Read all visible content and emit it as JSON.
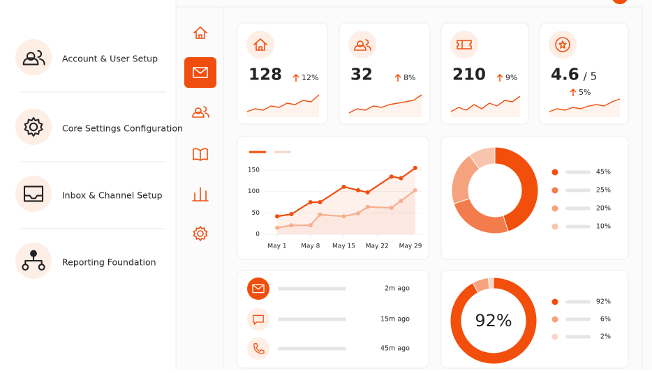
{
  "steps": [
    {
      "label": "Account & User Setup"
    },
    {
      "label": "Core Settings Configuration"
    },
    {
      "label": "Inbox & Channel Setup"
    },
    {
      "label": "Reporting Foundation"
    }
  ],
  "stats": [
    {
      "value": 128,
      "change": "12%",
      "trend": [
        2,
        3,
        2.5,
        4,
        3.5,
        5,
        4.5,
        6,
        5.5,
        8
      ]
    },
    {
      "value": 32,
      "change": "8%",
      "trend": [
        1.5,
        3,
        2.5,
        4,
        3.5,
        4.5,
        5,
        5.5,
        6,
        8
      ]
    },
    {
      "value": 210,
      "change": "9%",
      "trend": [
        2,
        3.5,
        2.5,
        4.5,
        3,
        5,
        4,
        6,
        5.5,
        7.5
      ]
    },
    {
      "value": 4.6,
      "scale": "/ 5",
      "change": "5%",
      "trend": [
        2,
        3,
        2.5,
        3.5,
        3,
        4,
        4.5,
        4,
        5.5,
        6.5
      ]
    }
  ],
  "line_chart": {
    "type": "line",
    "xlim": [
      1,
      30
    ],
    "xticks": [
      {
        "value": 1,
        "label": "May 1"
      },
      {
        "value": 8,
        "label": "May 8"
      },
      {
        "value": 15,
        "label": "May 15"
      },
      {
        "value": 22,
        "label": "May 22"
      },
      {
        "value": 29,
        "label": "May 29"
      }
    ],
    "ylim": [
      0,
      150
    ],
    "yticks": [
      0,
      50,
      100,
      150
    ],
    "series": [
      {
        "color": "#f04e0e",
        "x": [
          1,
          4,
          8,
          10,
          15,
          18,
          20,
          25,
          27,
          30
        ],
        "values": [
          42,
          47,
          75,
          75,
          111,
          103,
          98,
          135,
          131,
          155
        ]
      },
      {
        "color": "#f6b89a",
        "x": [
          1,
          4,
          8,
          10,
          15,
          18,
          20,
          25,
          27,
          30
        ],
        "values": [
          15,
          21,
          21,
          46,
          42,
          49,
          64,
          62,
          78,
          103
        ]
      }
    ]
  },
  "donut": {
    "type": "pie",
    "values": [
      45,
      25,
      20,
      10
    ],
    "value_labels": [
      "45%",
      "25%",
      "20%",
      "10%"
    ],
    "colors": [
      "#f24e0c",
      "#f37c4c",
      "#f5a27f",
      "#f8c4ad"
    ]
  },
  "gauge": {
    "type": "pie",
    "values": [
      92,
      6,
      2
    ],
    "value_labels": [
      "92%",
      "6%",
      "2%"
    ],
    "colors": [
      "#f24e0c",
      "#f5a27f",
      "#f9d6c6"
    ]
  },
  "activity": [
    {
      "time": "2m ago"
    },
    {
      "time": "15m ago"
    },
    {
      "time": "45m ago"
    }
  ]
}
